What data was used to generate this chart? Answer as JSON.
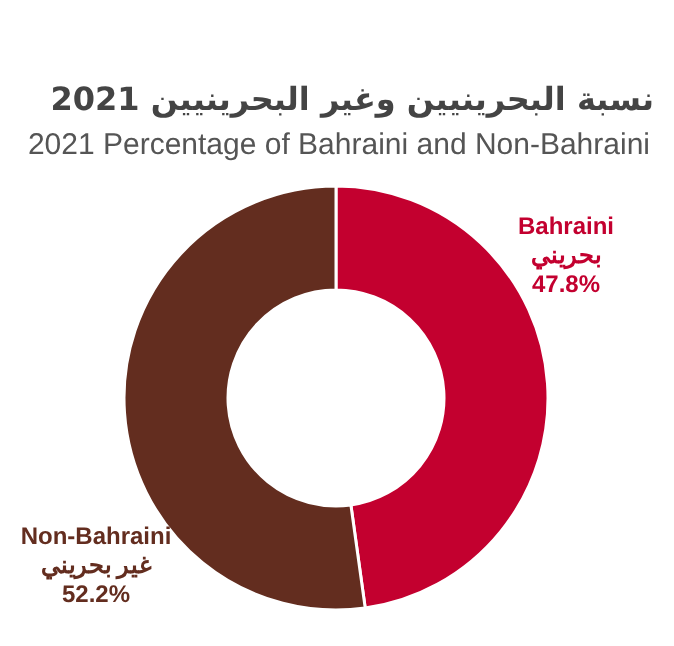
{
  "chart_data": {
    "type": "donut",
    "title": "نسبة البحرينيين وغير البحرينيين 2021",
    "subtitle": "2021 Percentage of Bahraini and Non-Bahraini",
    "categories": [
      "Bahraini\nبحريني",
      "Non-Bahraini\nغير بحريني"
    ],
    "values": [
      47.8,
      52.2
    ],
    "colors": [
      "#c3002f",
      "#632d1f"
    ],
    "value_labels": [
      "47.8%",
      "52.2%"
    ]
  }
}
